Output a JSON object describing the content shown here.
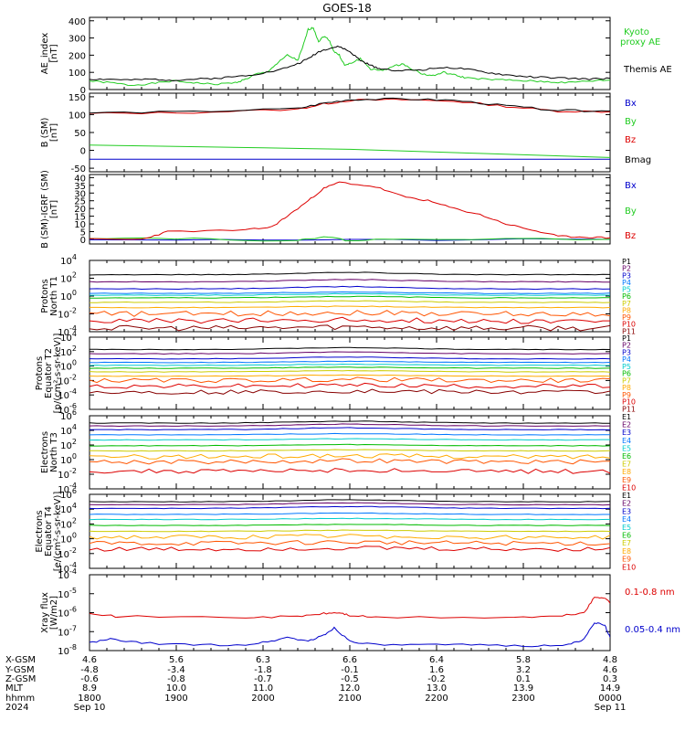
{
  "title": "GOES-18",
  "colors": {
    "black": "#000000",
    "red": "#dd0000",
    "green": "#22cc22",
    "blue": "#0000cc"
  },
  "chart_data": [
    {
      "id": "ae",
      "type": "line",
      "ylabel": [
        "AE_index",
        "[nT]"
      ],
      "yticks": [
        {
          "v": 0,
          "t": "0"
        },
        {
          "v": 100,
          "t": "100"
        },
        {
          "v": 200,
          "t": "200"
        },
        {
          "v": 300,
          "t": "300"
        },
        {
          "v": 400,
          "t": "400"
        }
      ],
      "ylim": [
        0,
        420
      ],
      "log": false,
      "legend": [
        {
          "text": "Kyoto",
          "color": "#22cc22"
        },
        {
          "text": "proxy AE",
          "color": "#22cc22"
        },
        {
          "text": "Themis AE",
          "color": "#000000"
        }
      ],
      "series": [
        {
          "name": "Kyoto proxy AE",
          "color": "#22cc22",
          "x": [
            0,
            0.04,
            0.08,
            0.12,
            0.16,
            0.2,
            0.24,
            0.28,
            0.3,
            0.32,
            0.34,
            0.36,
            0.38,
            0.4,
            0.41,
            0.42,
            0.43,
            0.44,
            0.45,
            0.46,
            0.47,
            0.48,
            0.49,
            0.5,
            0.52,
            0.54,
            0.56,
            0.58,
            0.6,
            0.62,
            0.64,
            0.66,
            0.68,
            0.7,
            0.72,
            0.76,
            0.8,
            0.84,
            0.88,
            0.92,
            0.96,
            1.0
          ],
          "y": [
            50,
            40,
            25,
            35,
            50,
            40,
            30,
            40,
            60,
            90,
            100,
            150,
            200,
            170,
            250,
            350,
            360,
            280,
            310,
            290,
            220,
            200,
            140,
            150,
            180,
            120,
            110,
            130,
            150,
            120,
            90,
            80,
            100,
            85,
            70,
            60,
            55,
            50,
            45,
            40,
            50,
            55
          ]
        },
        {
          "name": "Themis AE",
          "color": "#000000",
          "x": [
            0,
            0.04,
            0.08,
            0.12,
            0.16,
            0.2,
            0.24,
            0.28,
            0.32,
            0.36,
            0.4,
            0.42,
            0.44,
            0.46,
            0.48,
            0.5,
            0.52,
            0.54,
            0.56,
            0.6,
            0.64,
            0.68,
            0.72,
            0.76,
            0.8,
            0.84,
            0.88,
            0.92,
            0.96,
            1.0
          ],
          "y": [
            60,
            60,
            55,
            60,
            55,
            60,
            65,
            75,
            90,
            110,
            150,
            180,
            220,
            240,
            250,
            220,
            170,
            140,
            120,
            110,
            115,
            130,
            120,
            100,
            85,
            75,
            70,
            65,
            60,
            65
          ]
        }
      ]
    },
    {
      "id": "b",
      "type": "line",
      "ylabel": [
        "B (SM)",
        "[nT]"
      ],
      "yticks": [
        {
          "v": -50,
          "t": "-50"
        },
        {
          "v": 0,
          "t": "0"
        },
        {
          "v": 50,
          "t": "50"
        },
        {
          "v": 100,
          "t": "100"
        },
        {
          "v": 150,
          "t": "150"
        }
      ],
      "ylim": [
        -60,
        160
      ],
      "log": false,
      "legend": [
        {
          "text": "Bx",
          "color": "#0000cc"
        },
        {
          "text": "By",
          "color": "#22cc22"
        },
        {
          "text": "Bz",
          "color": "#dd0000"
        },
        {
          "text": "Bmag",
          "color": "#000000"
        }
      ],
      "series": [
        {
          "name": "Bx",
          "color": "#0000cc",
          "x": [
            0,
            0.5,
            1
          ],
          "y": [
            -25,
            -25,
            -25
          ]
        },
        {
          "name": "By",
          "color": "#22cc22",
          "x": [
            0,
            0.5,
            1
          ],
          "y": [
            15,
            3,
            -20
          ]
        },
        {
          "name": "Bz",
          "color": "#dd0000",
          "x": [
            0,
            0.2,
            0.4,
            0.45,
            0.5,
            0.6,
            0.7,
            0.8,
            0.9,
            1.0
          ],
          "y": [
            103,
            106,
            115,
            130,
            140,
            142,
            138,
            123,
            110,
            108
          ]
        },
        {
          "name": "Bmag",
          "color": "#000000",
          "x": [
            0,
            0.2,
            0.4,
            0.45,
            0.5,
            0.6,
            0.7,
            0.8,
            0.9,
            1.0
          ],
          "y": [
            105,
            108,
            117,
            132,
            142,
            144,
            140,
            125,
            112,
            110
          ]
        }
      ]
    },
    {
      "id": "dbsm",
      "type": "line",
      "ylabel": [
        "B (SM)-IGRF (SM)",
        "[nT]"
      ],
      "yticks": [
        {
          "v": 0,
          "t": "0"
        },
        {
          "v": 5,
          "t": "5"
        },
        {
          "v": 10,
          "t": "10"
        },
        {
          "v": 15,
          "t": "15"
        },
        {
          "v": 20,
          "t": "20"
        },
        {
          "v": 25,
          "t": "25"
        },
        {
          "v": 30,
          "t": "30"
        },
        {
          "v": 35,
          "t": "35"
        },
        {
          "v": 40,
          "t": "40"
        }
      ],
      "ylim": [
        -3,
        42
      ],
      "log": false,
      "legend": [
        {
          "text": "Bx",
          "color": "#0000cc"
        },
        {
          "text": "By",
          "color": "#22cc22"
        },
        {
          "text": "Bz",
          "color": "#dd0000"
        }
      ],
      "series": [
        {
          "name": "Bx",
          "color": "#0000cc",
          "x": [
            0,
            0.5,
            1
          ],
          "y": [
            0,
            -0.5,
            0
          ]
        },
        {
          "name": "By",
          "color": "#22cc22",
          "x": [
            0,
            0.2,
            0.4,
            0.45,
            0.5,
            0.6,
            1
          ],
          "y": [
            1,
            0.5,
            -1,
            2,
            -1,
            0.5,
            0
          ]
        },
        {
          "name": "Bz",
          "color": "#dd0000",
          "x": [
            0,
            0.1,
            0.15,
            0.3,
            0.35,
            0.38,
            0.42,
            0.45,
            0.48,
            0.55,
            0.6,
            0.65,
            0.7,
            0.75,
            0.8,
            0.85,
            0.9,
            0.95,
            1
          ],
          "y": [
            0,
            0,
            5,
            6,
            8,
            15,
            25,
            33,
            37,
            34,
            28,
            25,
            20,
            16,
            10,
            6,
            2,
            1.5,
            1
          ]
        }
      ]
    },
    {
      "id": "p1",
      "type": "line",
      "log": true,
      "ylabel": [
        "Protons",
        "North T1"
      ],
      "yticks": [
        {
          "v": -4,
          "t": "10",
          "e": "-4"
        },
        {
          "v": -2,
          "t": "10",
          "e": "-2"
        },
        {
          "v": 0,
          "t": "10",
          "e": "0"
        },
        {
          "v": 2,
          "t": "10",
          "e": "2"
        },
        {
          "v": 4,
          "t": "10",
          "e": "4"
        }
      ],
      "ylim": [
        -4,
        4
      ],
      "legend": [
        {
          "text": "P1",
          "color": "#000000"
        },
        {
          "text": "P2",
          "color": "#660066"
        },
        {
          "text": "P3",
          "color": "#0000cc"
        },
        {
          "text": "P4",
          "color": "#0077ff"
        },
        {
          "text": "P5",
          "color": "#00cccc"
        },
        {
          "text": "P6",
          "color": "#00bb00"
        },
        {
          "text": "P7",
          "color": "#cccc00"
        },
        {
          "text": "P8",
          "color": "#ffaa00"
        },
        {
          "text": "P9",
          "color": "#ff5500"
        },
        {
          "text": "P10",
          "color": "#dd0000"
        },
        {
          "text": "P11",
          "color": "#880000"
        }
      ],
      "levels": [
        2.4,
        1.6,
        0.8,
        0.3,
        0.1,
        -0.2,
        -0.7,
        -1.3,
        -2.0,
        -2.8,
        -3.6
      ]
    },
    {
      "id": "p2",
      "type": "line",
      "log": true,
      "ylabel": [
        "Protons",
        "Equator T2",
        "[p/(cm²-s-sr-keV)]"
      ],
      "yticks": [
        {
          "v": -6,
          "t": "10",
          "e": "-6"
        },
        {
          "v": -4,
          "t": "10",
          "e": "-4"
        },
        {
          "v": -2,
          "t": "10",
          "e": "-2"
        },
        {
          "v": 0,
          "t": "10",
          "e": "0"
        },
        {
          "v": 2,
          "t": "10",
          "e": "2"
        },
        {
          "v": 4,
          "t": "10",
          "e": "4"
        }
      ],
      "ylim": [
        -6,
        4
      ],
      "legend": [
        {
          "text": "P1",
          "color": "#000000"
        },
        {
          "text": "P2",
          "color": "#660066"
        },
        {
          "text": "P3",
          "color": "#0000cc"
        },
        {
          "text": "P4",
          "color": "#0077ff"
        },
        {
          "text": "P5",
          "color": "#00cccc"
        },
        {
          "text": "P6",
          "color": "#00bb00"
        },
        {
          "text": "P7",
          "color": "#cccc00"
        },
        {
          "text": "P8",
          "color": "#ffaa00"
        },
        {
          "text": "P9",
          "color": "#ff5500"
        },
        {
          "text": "P10",
          "color": "#dd0000"
        },
        {
          "text": "P11",
          "color": "#880000"
        }
      ],
      "levels": [
        2.3,
        1.7,
        1.0,
        0.5,
        0.1,
        -0.3,
        -0.8,
        -1.4,
        -2.0,
        -2.8,
        -3.6
      ]
    },
    {
      "id": "e1",
      "type": "line",
      "log": true,
      "ylabel": [
        "Electrons",
        "North T3"
      ],
      "yticks": [
        {
          "v": -4,
          "t": "10",
          "e": "-4"
        },
        {
          "v": -2,
          "t": "10",
          "e": "-2"
        },
        {
          "v": 0,
          "t": "10",
          "e": "0"
        },
        {
          "v": 2,
          "t": "10",
          "e": "2"
        },
        {
          "v": 4,
          "t": "10",
          "e": "4"
        },
        {
          "v": 6,
          "t": "10",
          "e": "6"
        }
      ],
      "ylim": [
        -4,
        6
      ],
      "legend": [
        {
          "text": "E1",
          "color": "#000000"
        },
        {
          "text": "E2",
          "color": "#660066"
        },
        {
          "text": "E3",
          "color": "#0000cc"
        },
        {
          "text": "E4",
          "color": "#0077ff"
        },
        {
          "text": "E5",
          "color": "#00cccc"
        },
        {
          "text": "E6",
          "color": "#00bb00"
        },
        {
          "text": "E7",
          "color": "#cccc00"
        },
        {
          "text": "E8",
          "color": "#ffaa00"
        },
        {
          "text": "E9",
          "color": "#ff5500"
        },
        {
          "text": "E10",
          "color": "#dd0000"
        }
      ],
      "levels": [
        5.0,
        4.6,
        4.1,
        3.4,
        2.7,
        1.9,
        1.2,
        0.4,
        -0.3,
        -1.6
      ]
    },
    {
      "id": "e2",
      "type": "line",
      "log": true,
      "ylabel": [
        "Electrons",
        "Equator T4",
        "[e/(cm²-s-sr-keV)]"
      ],
      "yticks": [
        {
          "v": -4,
          "t": "10",
          "e": "-4"
        },
        {
          "v": -2,
          "t": "10",
          "e": "-2"
        },
        {
          "v": 0,
          "t": "10",
          "e": "0"
        },
        {
          "v": 2,
          "t": "10",
          "e": "2"
        },
        {
          "v": 4,
          "t": "10",
          "e": "4"
        },
        {
          "v": 6,
          "t": "10",
          "e": "6"
        }
      ],
      "ylim": [
        -4,
        6
      ],
      "legend": [
        {
          "text": "E1",
          "color": "#000000"
        },
        {
          "text": "E2",
          "color": "#660066"
        },
        {
          "text": "E3",
          "color": "#0000cc"
        },
        {
          "text": "E4",
          "color": "#0077ff"
        },
        {
          "text": "E5",
          "color": "#00cccc"
        },
        {
          "text": "E6",
          "color": "#00bb00"
        },
        {
          "text": "E7",
          "color": "#cccc00"
        },
        {
          "text": "E8",
          "color": "#ffaa00"
        },
        {
          "text": "E9",
          "color": "#ff5500"
        },
        {
          "text": "E10",
          "color": "#dd0000"
        }
      ],
      "levels": [
        5.0,
        4.6,
        4.1,
        3.3,
        2.6,
        1.8,
        1.0,
        0.2,
        -0.6,
        -1.4
      ]
    },
    {
      "id": "xray",
      "type": "line",
      "log": true,
      "ylabel": [
        "Xray flux",
        "[W/m2]"
      ],
      "yticks": [
        {
          "v": -8,
          "t": "10",
          "e": "-8"
        },
        {
          "v": -7,
          "t": "10",
          "e": "-7"
        },
        {
          "v": -6,
          "t": "10",
          "e": "-6"
        },
        {
          "v": -5,
          "t": "10",
          "e": "-5"
        },
        {
          "v": -4,
          "t": "10",
          "e": "-4"
        }
      ],
      "ylim": [
        -8,
        -4
      ],
      "legend": [
        {
          "text": "0.1-0.8 nm",
          "color": "#dd0000"
        },
        {
          "text": "0.05-0.4 nm",
          "color": "#0000cc"
        }
      ],
      "series": [
        {
          "name": "0.1-0.8 nm",
          "color": "#dd0000",
          "x": [
            0,
            0.05,
            0.3,
            0.4,
            0.45,
            0.48,
            0.5,
            0.55,
            0.8,
            0.9,
            0.95,
            0.97,
            0.99,
            1.0
          ],
          "y": [
            -6.0,
            -6.2,
            -6.25,
            -6.2,
            -6.05,
            -6.0,
            -6.15,
            -6.25,
            -6.25,
            -6.2,
            -6.0,
            -5.2,
            -5.2,
            -5.5
          ]
        },
        {
          "name": "0.05-0.4 nm",
          "color": "#0000cc",
          "x": [
            0,
            0.04,
            0.1,
            0.2,
            0.3,
            0.35,
            0.38,
            0.42,
            0.45,
            0.47,
            0.5,
            0.55,
            0.65,
            0.75,
            0.85,
            0.92,
            0.95,
            0.97,
            0.99,
            1.0
          ],
          "y": [
            -7.6,
            -7.4,
            -7.6,
            -7.7,
            -7.7,
            -7.5,
            -7.3,
            -7.5,
            -7.2,
            -6.8,
            -7.5,
            -7.7,
            -7.7,
            -7.7,
            -7.75,
            -7.7,
            -7.4,
            -6.5,
            -6.7,
            -7.3
          ]
        }
      ]
    }
  ],
  "footer": {
    "labels": [
      "X-GSM",
      "Y-GSM",
      "Z-GSM",
      "MLT",
      "hhmm",
      "2024"
    ],
    "columns": [
      {
        "vals": [
          "4.6",
          "-4.8",
          "-0.6",
          "8.9",
          "1800",
          "Sep 10"
        ]
      },
      {
        "vals": [
          "5.6",
          "-3.4",
          "-0.8",
          "10.0",
          "1900",
          ""
        ]
      },
      {
        "vals": [
          "6.3",
          "-1.8",
          "-0.7",
          "11.0",
          "2000",
          ""
        ]
      },
      {
        "vals": [
          "6.6",
          "-0.1",
          "-0.5",
          "12.0",
          "2100",
          ""
        ]
      },
      {
        "vals": [
          "6.4",
          "1.6",
          "-0.2",
          "13.0",
          "2200",
          ""
        ]
      },
      {
        "vals": [
          "5.8",
          "3.2",
          "0.1",
          "13.9",
          "2300",
          ""
        ]
      },
      {
        "vals": [
          "4.8",
          "4.6",
          "0.3",
          "14.9",
          "0000",
          "Sep 11"
        ]
      }
    ]
  }
}
